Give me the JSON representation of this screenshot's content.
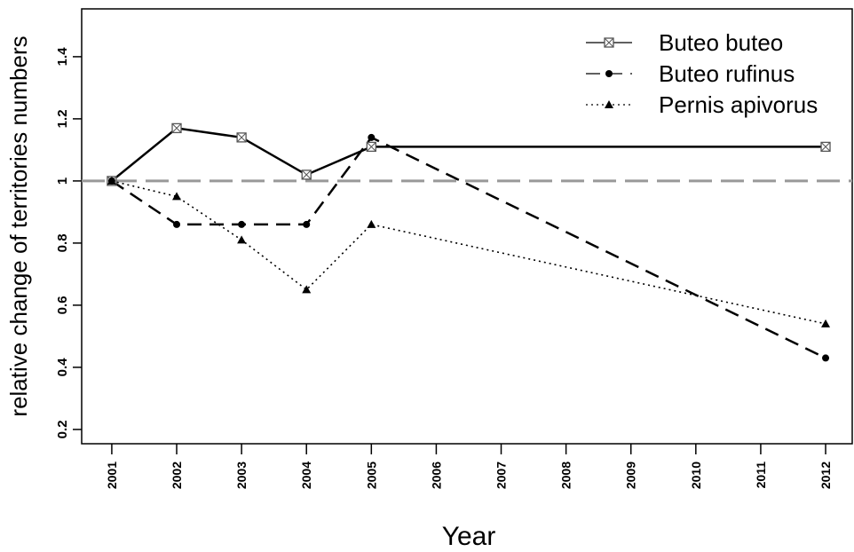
{
  "chart_data": {
    "type": "line",
    "x_label": "Year",
    "y_label": "relative change of territories numbers",
    "x": [
      2001,
      2002,
      2003,
      2004,
      2005,
      2012
    ],
    "series": [
      {
        "name": "Buteo buteo",
        "color": "#000000",
        "line_style": "solid",
        "marker": "square",
        "values": [
          1.0,
          1.17,
          1.14,
          1.02,
          1.11,
          1.11
        ]
      },
      {
        "name": "Buteo rufinus",
        "color": "#000000",
        "line_style": "dashed",
        "marker": "circle",
        "values": [
          1.0,
          0.86,
          0.86,
          0.86,
          1.14,
          0.43
        ]
      },
      {
        "name": "Pernis apivorus",
        "color": "#000000",
        "line_style": "dotted",
        "marker": "triangle",
        "values": [
          1.0,
          0.95,
          0.81,
          0.65,
          0.86,
          0.54
        ]
      }
    ],
    "reference_line": 1.0,
    "reference_color": "#999999",
    "xlim": [
      2000.536,
      2012.41
    ],
    "xticks": [
      2001,
      2002,
      2003,
      2004,
      2005,
      2006,
      2007,
      2008,
      2009,
      2010,
      2011,
      2012
    ],
    "ylim": [
      0.154,
      1.554
    ],
    "yticks": [
      0.2,
      0.4,
      0.6,
      0.8,
      1.0,
      1.2,
      1.4
    ],
    "legend": "top-right",
    "grid": false
  }
}
